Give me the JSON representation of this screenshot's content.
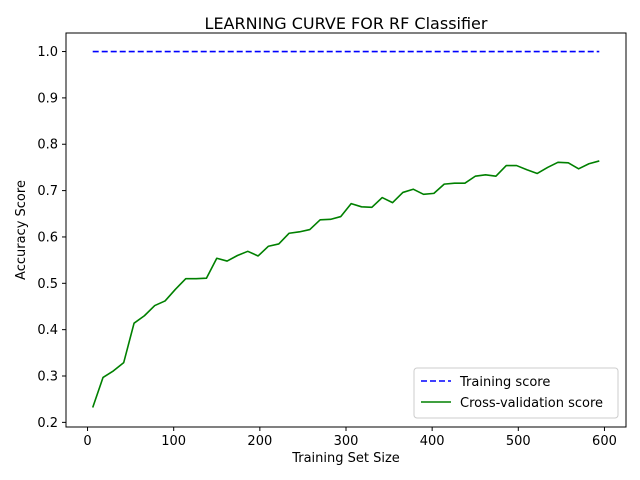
{
  "chart_data": {
    "type": "line",
    "title": "LEARNING CURVE FOR RF Classifier",
    "xlabel": "Training Set Size",
    "ylabel": "Accuracy Score",
    "xlim": [
      -25,
      625
    ],
    "ylim": [
      0.19,
      1.04
    ],
    "xticks": [
      0,
      100,
      200,
      300,
      400,
      500,
      600
    ],
    "yticks": [
      0.2,
      0.3,
      0.4,
      0.5,
      0.6,
      0.7,
      0.8,
      0.9,
      1.0
    ],
    "grid": false,
    "legend_position": "lower right",
    "series": [
      {
        "name": "Training score",
        "color": "#0000ff",
        "style": "dashed",
        "x": [
          6,
          18,
          30,
          42,
          54,
          66,
          78,
          90,
          102,
          114,
          126,
          138,
          150,
          162,
          174,
          186,
          198,
          210,
          222,
          234,
          246,
          258,
          270,
          282,
          294,
          306,
          318,
          330,
          342,
          354,
          366,
          378,
          390,
          402,
          414,
          426,
          438,
          450,
          462,
          474,
          486,
          498,
          510,
          522,
          534,
          546,
          558,
          570,
          582,
          594
        ],
        "y": [
          1.0,
          1.0,
          1.0,
          1.0,
          1.0,
          1.0,
          1.0,
          1.0,
          1.0,
          1.0,
          1.0,
          1.0,
          1.0,
          1.0,
          1.0,
          1.0,
          1.0,
          1.0,
          1.0,
          1.0,
          1.0,
          1.0,
          1.0,
          1.0,
          1.0,
          1.0,
          1.0,
          1.0,
          1.0,
          1.0,
          1.0,
          1.0,
          1.0,
          1.0,
          1.0,
          1.0,
          1.0,
          1.0,
          1.0,
          1.0,
          1.0,
          1.0,
          1.0,
          1.0,
          1.0,
          1.0,
          1.0,
          1.0,
          1.0,
          1.0
        ]
      },
      {
        "name": "Cross-validation score",
        "color": "#008000",
        "style": "solid",
        "x": [
          6,
          18,
          30,
          42,
          54,
          66,
          78,
          90,
          102,
          114,
          126,
          138,
          150,
          162,
          174,
          186,
          198,
          210,
          222,
          234,
          246,
          258,
          270,
          282,
          294,
          306,
          318,
          330,
          342,
          354,
          366,
          378,
          390,
          402,
          414,
          426,
          438,
          450,
          462,
          474,
          486,
          498,
          510,
          522,
          534,
          546,
          558,
          570,
          582,
          594
        ],
        "y": [
          0.232,
          0.297,
          0.311,
          0.329,
          0.414,
          0.43,
          0.452,
          0.462,
          0.487,
          0.51,
          0.51,
          0.511,
          0.554,
          0.548,
          0.56,
          0.569,
          0.559,
          0.58,
          0.585,
          0.608,
          0.611,
          0.616,
          0.637,
          0.638,
          0.644,
          0.672,
          0.665,
          0.664,
          0.685,
          0.674,
          0.696,
          0.703,
          0.692,
          0.694,
          0.714,
          0.716,
          0.716,
          0.731,
          0.734,
          0.731,
          0.754,
          0.754,
          0.745,
          0.737,
          0.75,
          0.761,
          0.76,
          0.747,
          0.758,
          0.764
        ]
      }
    ]
  }
}
